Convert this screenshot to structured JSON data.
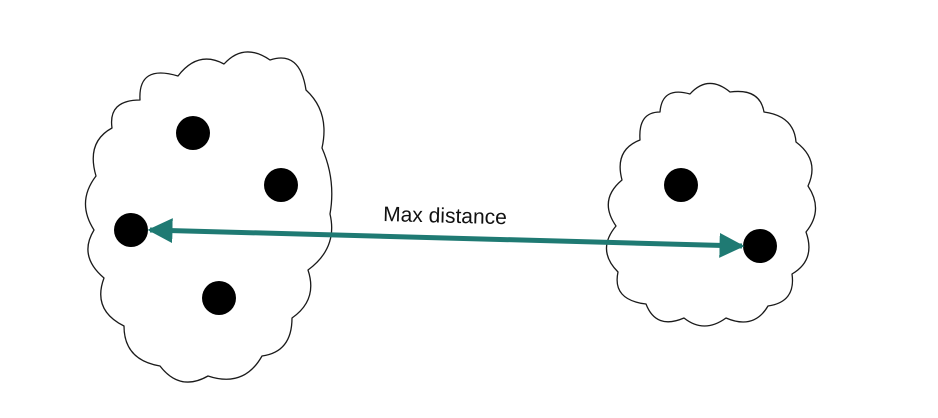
{
  "diagram": {
    "label": "Max distance",
    "arrow_color": "#1f7a73",
    "point_color": "#000000",
    "cloud_stroke_color": "#1a1a1a",
    "clusters": [
      {
        "name": "left-cluster",
        "point_count": 4
      },
      {
        "name": "right-cluster",
        "point_count": 2
      }
    ]
  }
}
